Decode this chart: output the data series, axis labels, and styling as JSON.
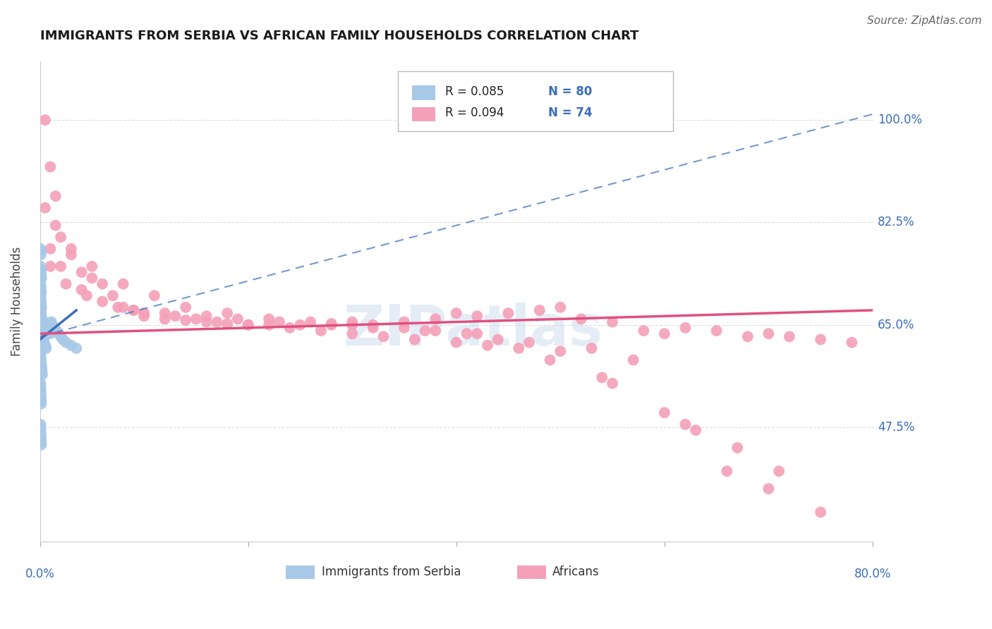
{
  "title": "IMMIGRANTS FROM SERBIA VS AFRICAN FAMILY HOUSEHOLDS CORRELATION CHART",
  "source": "Source: ZipAtlas.com",
  "ylabel": "Family Households",
  "ytick_values": [
    47.5,
    65.0,
    82.5,
    100.0
  ],
  "xlim": [
    0.0,
    80.0
  ],
  "ylim": [
    28.0,
    110.0
  ],
  "blue_color": "#A8C8E8",
  "pink_color": "#F4A0B8",
  "blue_line_color": "#3A6EBC",
  "pink_line_color": "#E05080",
  "grid_color": "#dddddd",
  "watermark": "ZIPatlas",
  "serbia_x": [
    0.05,
    0.08,
    0.1,
    0.12,
    0.15,
    0.18,
    0.2,
    0.22,
    0.25,
    0.28,
    0.05,
    0.08,
    0.1,
    0.12,
    0.15,
    0.18,
    0.2,
    0.22,
    0.25,
    0.28,
    0.05,
    0.08,
    0.1,
    0.12,
    0.15,
    0.05,
    0.08,
    0.1,
    0.12,
    0.05,
    0.08,
    0.1,
    0.12,
    0.15,
    0.18,
    0.2,
    0.22,
    0.3,
    0.35,
    0.4,
    0.5,
    0.6,
    0.7,
    0.8,
    0.9,
    1.0,
    1.1,
    1.2,
    1.4,
    1.6,
    1.8,
    2.0,
    2.2,
    2.5,
    3.0,
    3.5,
    0.05,
    0.08,
    0.1,
    0.12,
    0.15,
    0.05,
    0.08,
    0.1,
    0.05,
    0.06,
    0.07,
    0.08,
    0.09,
    0.1,
    0.11,
    0.12,
    0.05,
    0.06,
    0.07,
    0.08,
    0.09,
    0.1,
    0.11,
    0.12
  ],
  "serbia_y": [
    65.0,
    65.5,
    66.0,
    65.0,
    64.5,
    64.0,
    65.5,
    66.0,
    65.0,
    64.5,
    68.0,
    67.5,
    67.0,
    66.5,
    66.0,
    65.5,
    65.0,
    64.5,
    64.0,
    63.5,
    70.0,
    69.5,
    69.0,
    68.5,
    68.0,
    72.0,
    71.5,
    71.0,
    70.5,
    60.0,
    59.5,
    59.0,
    58.5,
    58.0,
    57.5,
    57.0,
    56.5,
    63.0,
    62.5,
    62.0,
    61.5,
    61.0,
    65.0,
    64.5,
    64.0,
    63.5,
    65.5,
    65.0,
    64.5,
    64.0,
    63.5,
    63.0,
    62.5,
    62.0,
    61.5,
    61.0,
    75.0,
    74.5,
    74.0,
    73.5,
    73.0,
    78.0,
    77.5,
    77.0,
    55.0,
    54.5,
    54.0,
    53.5,
    53.0,
    52.5,
    52.0,
    51.5,
    48.0,
    47.5,
    47.0,
    46.5,
    46.0,
    45.5,
    45.0,
    44.5
  ],
  "africa_x": [
    0.5,
    1.0,
    1.5,
    2.0,
    3.0,
    4.0,
    5.0,
    6.0,
    7.0,
    8.0,
    9.0,
    10.0,
    12.0,
    14.0,
    16.0,
    18.0,
    20.0,
    22.0,
    25.0,
    28.0,
    30.0,
    32.0,
    35.0,
    38.0,
    40.0,
    42.0,
    45.0,
    48.0,
    50.0,
    52.0,
    55.0,
    58.0,
    60.0,
    62.0,
    65.0,
    68.0,
    70.0,
    72.0,
    75.0,
    78.0,
    1.0,
    2.5,
    4.5,
    7.5,
    10.0,
    13.0,
    15.0,
    17.0,
    20.0,
    24.0,
    27.0,
    30.0,
    33.0,
    36.0,
    40.0,
    43.0,
    46.0,
    50.0,
    55.0,
    60.0,
    0.5,
    1.5,
    3.0,
    5.0,
    8.0,
    11.0,
    14.0,
    18.0,
    22.0,
    26.0,
    30.0,
    35.0,
    38.0,
    42.0,
    47.0,
    53.0,
    57.0,
    62.0,
    66.0,
    70.0,
    1.0,
    2.0,
    4.0,
    6.0,
    9.0,
    12.0,
    16.0,
    19.0,
    23.0,
    28.0,
    32.0,
    37.0,
    41.0,
    44.0,
    49.0,
    54.0,
    63.0,
    67.0,
    71.0,
    75.0
  ],
  "africa_y": [
    100.0,
    92.0,
    87.0,
    80.0,
    77.0,
    74.0,
    73.0,
    72.0,
    70.0,
    68.0,
    67.5,
    66.5,
    66.0,
    65.8,
    65.5,
    65.2,
    65.0,
    65.0,
    65.0,
    65.2,
    65.5,
    65.0,
    65.5,
    66.0,
    67.0,
    66.5,
    67.0,
    67.5,
    68.0,
    66.0,
    65.5,
    64.0,
    63.5,
    64.5,
    64.0,
    63.0,
    63.5,
    63.0,
    62.5,
    62.0,
    75.0,
    72.0,
    70.0,
    68.0,
    67.0,
    66.5,
    66.0,
    65.5,
    65.0,
    64.5,
    64.0,
    63.5,
    63.0,
    62.5,
    62.0,
    61.5,
    61.0,
    60.5,
    55.0,
    50.0,
    85.0,
    82.0,
    78.0,
    75.0,
    72.0,
    70.0,
    68.0,
    67.0,
    66.0,
    65.5,
    65.0,
    64.5,
    64.0,
    63.5,
    62.0,
    61.0,
    59.0,
    48.0,
    40.0,
    37.0,
    78.0,
    75.0,
    71.0,
    69.0,
    67.5,
    67.0,
    66.5,
    66.0,
    65.5,
    65.0,
    64.5,
    64.0,
    63.5,
    62.5,
    59.0,
    56.0,
    47.0,
    44.0,
    40.0,
    33.0
  ],
  "serbia_line": [
    0.0,
    3.5,
    62.5,
    67.5
  ],
  "africa_line_solid": [
    0.0,
    80.0,
    63.5,
    67.5
  ],
  "africa_line_dashed": [
    0.0,
    80.0,
    63.0,
    101.0
  ]
}
